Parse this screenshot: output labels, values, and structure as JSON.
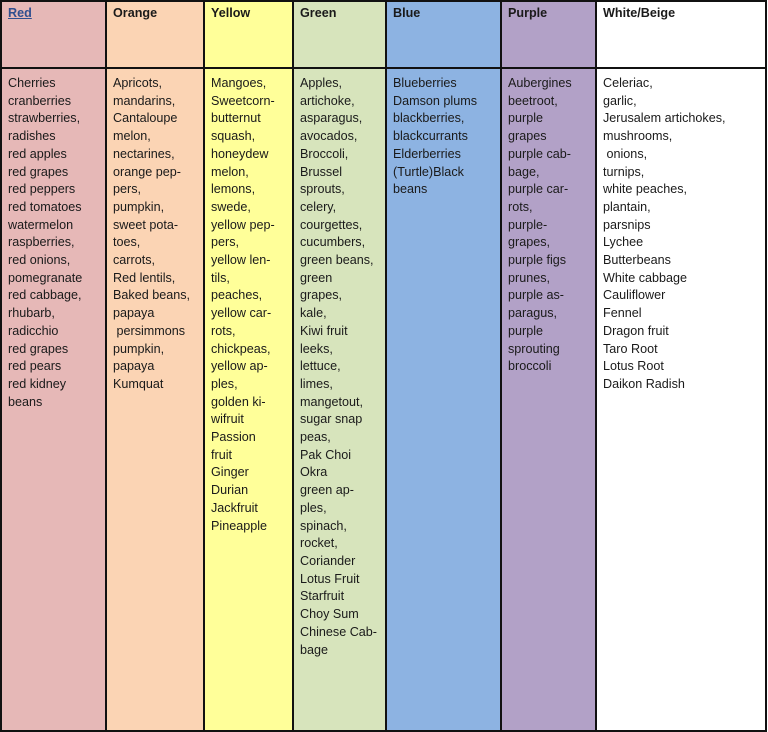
{
  "columns": [
    {
      "header": "Red",
      "color": "#e6b8b7",
      "items": [
        "Cherries",
        "cranberries",
        "strawberries,",
        "radishes",
        "red apples",
        "red grapes",
        "red peppers",
        "red tomatoes",
        "watermelon",
        "raspberries,",
        "red onions,",
        "pomegranate",
        "red cabbage,",
        "rhubarb,",
        "radicchio",
        "red grapes",
        "red pears",
        "red kidney",
        "beans"
      ]
    },
    {
      "header": "Orange",
      "color": "#fbd4b4",
      "items": [
        "Apricots,",
        "mandarins,",
        "Cantaloupe",
        "melon,",
        "nectarines,",
        "orange pep-",
        "pers,",
        "pumpkin,",
        "sweet pota-",
        "toes,",
        "carrots,",
        "Red lentils,",
        "Baked beans,",
        "papaya",
        " persimmons",
        "pumpkin,",
        "papaya",
        "Kumquat"
      ]
    },
    {
      "header": "Yellow",
      "color": "#ffff99",
      "items": [
        "Mangoes,",
        "Sweetcorn-",
        "butternut",
        "squash,",
        "honeydew",
        "melon,",
        "lemons,",
        "swede,",
        "yellow pep-",
        "pers,",
        "yellow len-",
        "tils,",
        "peaches,",
        "yellow car-",
        "rots,",
        "chickpeas,",
        "yellow ap-",
        "ples,",
        "golden ki-",
        "wifruit",
        "Passion",
        "fruit",
        "Ginger",
        "Durian",
        "Jackfruit",
        "Pineapple"
      ]
    },
    {
      "header": "Green",
      "color": "#d7e4bc",
      "items": [
        "Apples,",
        "artichoke,",
        "asparagus,",
        "avocados,",
        "Broccoli,",
        "Brussel",
        "sprouts,",
        "celery,",
        "courgettes,",
        "cucumbers,",
        "green beans,",
        "green",
        "grapes,",
        "kale,",
        "Kiwi fruit",
        "leeks,",
        "lettuce,",
        "limes,",
        "mangetout,",
        "sugar snap",
        "peas,",
        "Pak Choi",
        "Okra",
        "green ap-",
        "ples,",
        "spinach,",
        "rocket,",
        "Coriander",
        "Lotus Fruit",
        "Starfruit",
        "Choy Sum",
        "Chinese Cab-",
        "bage"
      ]
    },
    {
      "header": "Blue",
      "color": "#8db3e2",
      "items": [
        "Blueberries",
        "Damson plums",
        "blackberries,",
        "blackcurrants",
        "Elderberries",
        "(Turtle)Black",
        "beans"
      ]
    },
    {
      "header": "Purple",
      "color": "#b2a1c7",
      "items": [
        "Aubergines",
        "beetroot,",
        "purple",
        "grapes",
        "purple cab-",
        "bage,",
        "purple car-",
        "rots,",
        "purple-",
        "grapes,",
        "purple figs",
        "prunes,",
        "purple as-",
        "paragus,",
        "purple",
        "sprouting",
        "broccoli"
      ]
    },
    {
      "header": "White/Beige",
      "color": "#ffffff",
      "items": [
        "Celeriac,",
        "garlic,",
        "Jerusalem artichokes,",
        "mushrooms,",
        " onions,",
        "turnips,",
        "white peaches,",
        "plantain,",
        "parsnips",
        "Lychee",
        "Butterbeans",
        "White cabbage",
        "Cauliflower",
        "Fennel",
        "Dragon fruit",
        "Taro Root",
        "Lotus Root",
        "Daikon Radish"
      ]
    }
  ]
}
